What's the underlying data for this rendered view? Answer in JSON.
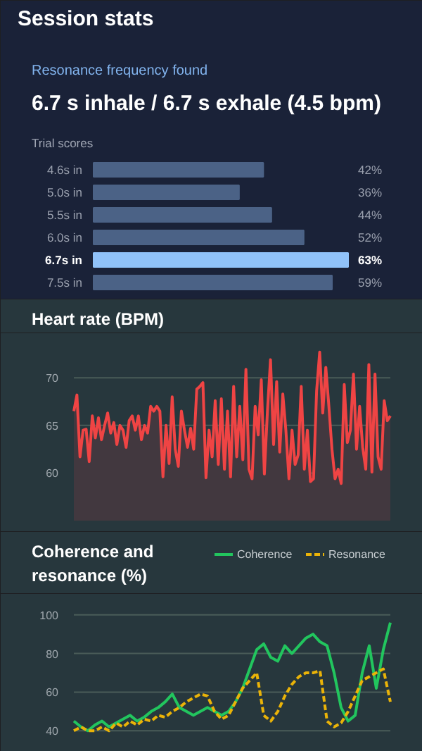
{
  "chart_data": [
    {
      "type": "bar",
      "orientation": "horizontal",
      "value_labels": [
        "42%",
        "36%",
        "44%",
        "52%",
        "63%",
        "59%"
      ],
      "title": "Resonance frequency found",
      "subtitle": "6.7 s inhale / 6.7 s exhale (4.5 bpm)",
      "annotations": [
        "Session stats",
        "Trial scores"
      ],
      "categories": [
        "4.6s in",
        "5.0s in",
        "5.5s in",
        "6.0s in",
        "6.7s in",
        "7.5s in"
      ],
      "values": [
        42,
        36,
        44,
        52,
        63,
        59
      ],
      "colors": [
        "#4b6286",
        "#4b6286",
        "#4b6286",
        "#4b6286",
        "#90c2f9",
        "#4b6286"
      ]
    },
    {
      "type": "area",
      "title": "Heart rate (BPM)",
      "tick_labels": "y",
      "grid": "y",
      "ylim": [
        55,
        73.5
      ],
      "yticks": [
        60,
        65,
        70
      ],
      "categories": [
        null,
        null,
        null,
        null,
        null,
        null,
        null,
        null,
        null,
        null,
        null,
        null,
        null,
        null,
        null,
        null,
        null,
        null,
        null,
        null,
        null,
        null,
        null,
        null,
        null,
        null,
        null,
        null,
        null,
        null,
        null,
        null,
        null,
        null,
        null,
        null,
        null,
        null,
        null,
        null,
        null,
        null,
        null,
        null,
        null,
        null,
        null,
        null,
        null,
        null,
        null,
        null,
        null,
        null,
        null,
        null,
        null,
        null,
        null,
        null,
        null,
        null,
        null,
        null,
        null,
        null,
        null,
        null,
        null,
        null,
        null,
        null,
        null,
        null,
        null,
        null,
        null,
        null,
        null,
        null,
        null,
        null,
        null,
        null,
        null,
        null,
        null,
        null,
        null,
        null,
        null,
        null,
        null,
        null,
        null,
        null,
        null,
        null,
        null,
        null,
        null,
        null,
        null,
        null
      ],
      "series": [
        {
          "color": "#ef4444",
          "values": [
            66.5,
            68.2,
            61.7,
            64.5,
            64.6,
            61.2,
            66,
            63.7,
            65.8,
            63.5,
            65,
            66.3,
            64.2,
            65.3,
            63,
            65,
            64.5,
            62.7,
            65.5,
            66,
            64.5,
            66,
            63.5,
            65,
            64.2,
            67,
            66.5,
            67,
            66.5,
            59.6,
            65,
            61,
            68,
            62.5,
            60.7,
            66.5,
            64.5,
            62.7,
            64.7,
            62.5,
            68.8,
            69.1,
            69.5,
            59.5,
            64.5,
            61.7,
            67.6,
            60.9,
            67.8,
            60.4,
            66.5,
            59.6,
            69.1,
            61.7,
            67,
            61.4,
            70.9,
            60.4,
            59.4,
            67,
            64,
            69.8,
            59.9,
            66.5,
            71.9,
            63,
            69.6,
            62.2,
            68.3,
            64.5,
            59.4,
            64.5,
            60.9,
            61.9,
            69.1,
            60.4,
            64.5,
            59.1,
            59.4,
            68.6,
            72.7,
            66.3,
            71.1,
            67,
            62.5,
            59.4,
            60.4,
            58.9,
            69.3,
            63.2,
            64.5,
            70.4,
            62.5,
            67,
            62.7,
            60.4,
            71.4,
            60.1,
            70.4,
            61.7,
            60.4,
            67.6,
            65.5,
            66
          ]
        }
      ]
    },
    {
      "type": "line",
      "title": "Coherence and resonance (%)",
      "tick_labels": "y",
      "grid": "y",
      "legend": "top right",
      "ylim": [
        35,
        105
      ],
      "yticks": [
        40,
        60,
        80,
        100
      ],
      "categories": [
        null,
        null,
        null,
        null,
        null,
        null,
        null,
        null,
        null,
        null,
        null,
        null,
        null,
        null,
        null,
        null,
        null,
        null,
        null,
        null,
        null,
        null,
        null,
        null,
        null,
        null,
        null,
        null,
        null,
        null,
        null,
        null,
        null,
        null,
        null,
        null,
        null,
        null,
        null,
        null,
        null,
        null,
        null,
        null,
        null,
        null
      ],
      "series": [
        {
          "name": "Coherence",
          "color": "#22c55e",
          "line_style": "solid",
          "values": [
            45,
            42,
            40,
            43,
            45,
            42,
            44,
            46,
            48,
            45,
            47,
            50,
            52,
            55,
            59,
            52,
            50,
            48,
            50,
            52,
            50,
            48,
            50,
            55,
            62,
            72,
            82,
            85,
            78,
            76,
            84,
            80,
            84,
            88,
            90,
            86,
            84,
            70,
            52,
            45,
            48,
            70,
            84,
            62,
            82,
            96
          ]
        },
        {
          "name": "Resonance",
          "color": "#eab308",
          "line_style": "dashed",
          "values": [
            40,
            42,
            40,
            40,
            42,
            40,
            44,
            42,
            45,
            43,
            46,
            45,
            48,
            47,
            50,
            52,
            55,
            57,
            59,
            58,
            50,
            46,
            48,
            55,
            62,
            66,
            70,
            48,
            45,
            50,
            58,
            64,
            68,
            70,
            70,
            71,
            45,
            42,
            44,
            50,
            58,
            66,
            68,
            70,
            72,
            55
          ]
        }
      ]
    }
  ]
}
